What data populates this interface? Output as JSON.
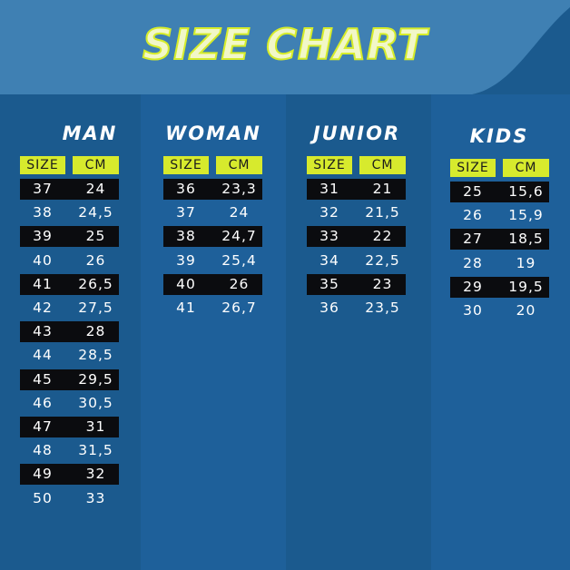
{
  "title": "SIZE CHART",
  "colors": {
    "background": "#1b5a8e",
    "header_band": "#3f80b3",
    "header_badge": "#d7ea2d",
    "dark_row": "#0b0c0f",
    "title_outline": "#d6ec2a"
  },
  "columns": [
    {
      "label": "MAN",
      "headers": [
        "SIZE",
        "CM"
      ],
      "rows": [
        [
          "37",
          "24"
        ],
        [
          "38",
          "24,5"
        ],
        [
          "39",
          "25"
        ],
        [
          "40",
          "26"
        ],
        [
          "41",
          "26,5"
        ],
        [
          "42",
          "27,5"
        ],
        [
          "43",
          "28"
        ],
        [
          "44",
          "28,5"
        ],
        [
          "45",
          "29,5"
        ],
        [
          "46",
          "30,5"
        ],
        [
          "47",
          "31"
        ],
        [
          "48",
          "31,5"
        ],
        [
          "49",
          "32"
        ],
        [
          "50",
          "33"
        ]
      ]
    },
    {
      "label": "WOMAN",
      "headers": [
        "SIZE",
        "CM"
      ],
      "rows": [
        [
          "36",
          "23,3"
        ],
        [
          "37",
          "24"
        ],
        [
          "38",
          "24,7"
        ],
        [
          "39",
          "25,4"
        ],
        [
          "40",
          "26"
        ],
        [
          "41",
          "26,7"
        ]
      ]
    },
    {
      "label": "JUNIOR",
      "headers": [
        "SIZE",
        "CM"
      ],
      "rows": [
        [
          "31",
          "21"
        ],
        [
          "32",
          "21,5"
        ],
        [
          "33",
          "22"
        ],
        [
          "34",
          "22,5"
        ],
        [
          "35",
          "23"
        ],
        [
          "36",
          "23,5"
        ]
      ]
    },
    {
      "label": "KIDS",
      "headers": [
        "SIZE",
        "CM"
      ],
      "rows": [
        [
          "25",
          "15,6"
        ],
        [
          "26",
          "15,9"
        ],
        [
          "27",
          "18,5"
        ],
        [
          "28",
          "19"
        ],
        [
          "29",
          "19,5"
        ],
        [
          "30",
          "20"
        ]
      ]
    }
  ]
}
